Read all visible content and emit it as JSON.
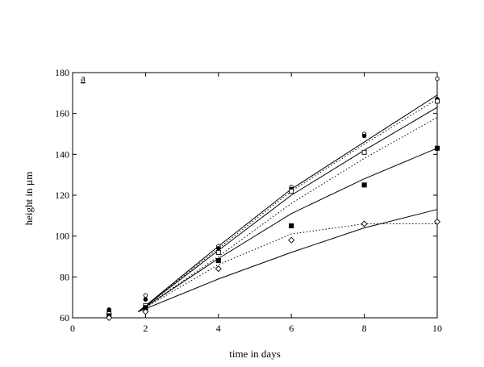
{
  "chart_data": {
    "type": "scatter",
    "panel_label": "a",
    "xlabel": "time in days",
    "ylabel": "height in µm",
    "xlim": [
      0,
      10
    ],
    "ylim": [
      60,
      180
    ],
    "x_ticks": [
      0,
      2,
      4,
      6,
      8,
      10
    ],
    "y_ticks": [
      60,
      80,
      100,
      120,
      140,
      160,
      180
    ],
    "grid": false,
    "legend": "none",
    "series": [
      {
        "marker": "open-circle",
        "points": [
          [
            1,
            63
          ],
          [
            2,
            71
          ],
          [
            4,
            95
          ],
          [
            6,
            124
          ],
          [
            8,
            150
          ],
          [
            10,
            177
          ]
        ]
      },
      {
        "marker": "filled-circle",
        "points": [
          [
            1,
            64
          ],
          [
            2,
            69
          ],
          [
            4,
            94
          ],
          [
            6,
            123
          ],
          [
            8,
            149
          ],
          [
            10,
            167
          ]
        ]
      },
      {
        "marker": "open-square",
        "points": [
          [
            1,
            62
          ],
          [
            2,
            66
          ],
          [
            4,
            92
          ],
          [
            6,
            122
          ],
          [
            8,
            141
          ],
          [
            10,
            166
          ]
        ]
      },
      {
        "marker": "filled-square",
        "points": [
          [
            1,
            61
          ],
          [
            2,
            65
          ],
          [
            4,
            88
          ],
          [
            6,
            105
          ],
          [
            8,
            125
          ],
          [
            10,
            143
          ]
        ]
      },
      {
        "marker": "open-diamond",
        "points": [
          [
            1,
            60
          ],
          [
            2,
            63
          ],
          [
            4,
            84
          ],
          [
            6,
            98
          ],
          [
            8,
            106
          ],
          [
            10,
            107
          ]
        ]
      }
    ],
    "fit_lines": [
      {
        "style": "solid",
        "points": [
          [
            1.8,
            63
          ],
          [
            4,
            95
          ],
          [
            6,
            123
          ],
          [
            8,
            146
          ],
          [
            10,
            169
          ]
        ]
      },
      {
        "style": "dotted",
        "points": [
          [
            1.8,
            63
          ],
          [
            4,
            94
          ],
          [
            6,
            122
          ],
          [
            8,
            145
          ],
          [
            10,
            167
          ]
        ]
      },
      {
        "style": "solid",
        "points": [
          [
            1.8,
            63
          ],
          [
            4,
            93
          ],
          [
            6,
            120
          ],
          [
            8,
            142
          ],
          [
            10,
            163
          ]
        ]
      },
      {
        "style": "dotted",
        "points": [
          [
            1.8,
            63
          ],
          [
            4,
            90
          ],
          [
            6,
            116
          ],
          [
            8,
            138
          ],
          [
            10,
            158
          ]
        ]
      },
      {
        "style": "solid",
        "points": [
          [
            1.8,
            63
          ],
          [
            4,
            89
          ],
          [
            6,
            111
          ],
          [
            8,
            128
          ],
          [
            10,
            143
          ]
        ]
      },
      {
        "style": "dotted",
        "points": [
          [
            1.8,
            63
          ],
          [
            4,
            86
          ],
          [
            6,
            101
          ],
          [
            8,
            106
          ],
          [
            10,
            106
          ]
        ]
      },
      {
        "style": "solid",
        "points": [
          [
            1.8,
            63
          ],
          [
            4,
            79
          ],
          [
            6,
            92
          ],
          [
            8,
            104
          ],
          [
            10,
            113
          ]
        ]
      }
    ]
  }
}
